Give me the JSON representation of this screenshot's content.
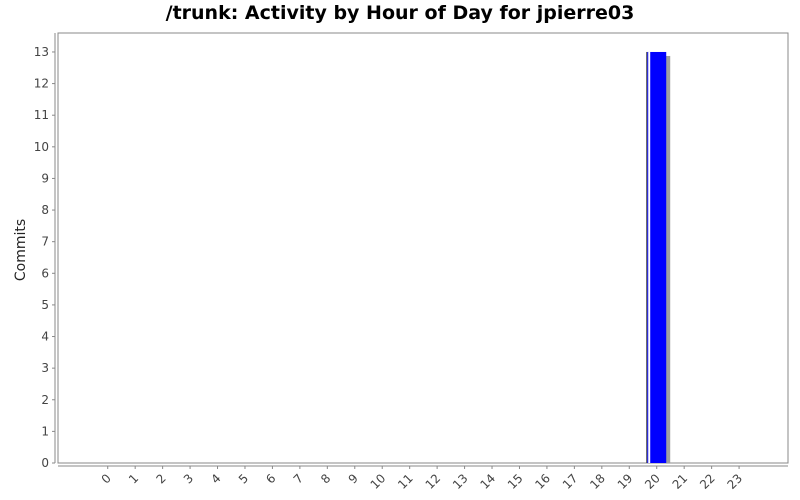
{
  "chart_data": {
    "type": "bar",
    "title": "/trunk: Activity by Hour of Day for jpierre03",
    "xlabel": "",
    "ylabel": "Commits",
    "categories": [
      "0",
      "1",
      "2",
      "3",
      "4",
      "5",
      "6",
      "7",
      "8",
      "9",
      "10",
      "11",
      "12",
      "13",
      "14",
      "15",
      "16",
      "17",
      "18",
      "19",
      "20",
      "21",
      "22",
      "23"
    ],
    "values": [
      0,
      0,
      0,
      0,
      0,
      0,
      0,
      0,
      0,
      0,
      0,
      0,
      0,
      0,
      0,
      0,
      0,
      0,
      0,
      0,
      13,
      0,
      0,
      0
    ],
    "ylim": [
      0,
      13.6
    ],
    "yticks": [
      0,
      1,
      2,
      3,
      4,
      5,
      6,
      7,
      8,
      9,
      10,
      11,
      12,
      13
    ],
    "grid": false,
    "legend": "none",
    "bar_color": "#0000ff",
    "shadow_color": "#a0a0a0"
  }
}
